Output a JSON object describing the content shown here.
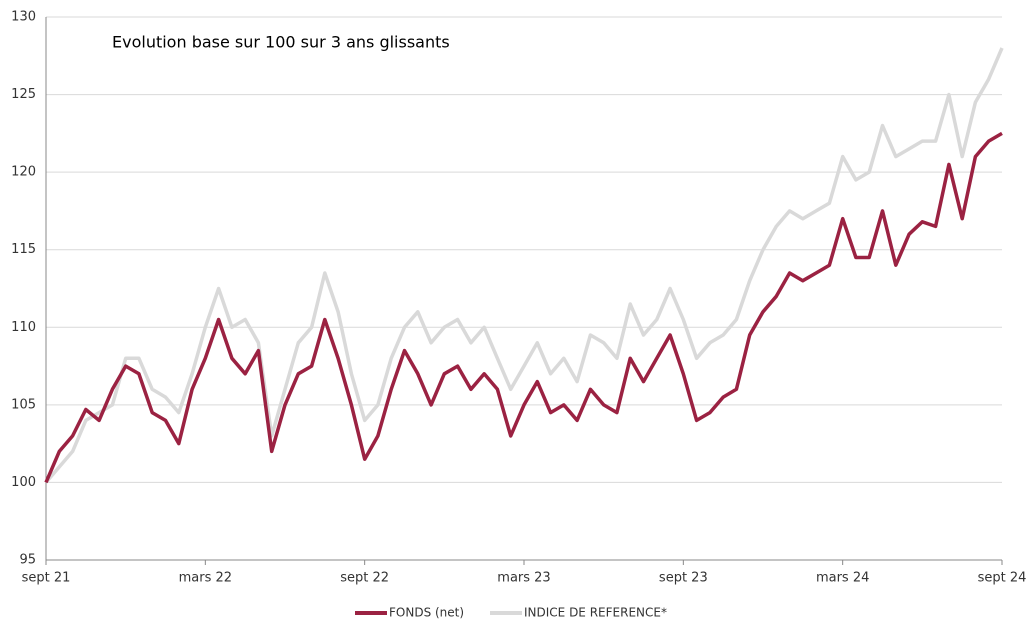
{
  "chart_data": {
    "type": "line",
    "title": "Evolution base sur 100 sur 3 ans glissants",
    "categories": [
      "sept 21",
      null,
      null,
      null,
      null,
      null,
      null,
      null,
      null,
      null,
      null,
      null,
      "mars 22",
      null,
      null,
      null,
      null,
      null,
      null,
      null,
      null,
      null,
      null,
      null,
      "sept 22",
      null,
      null,
      null,
      null,
      null,
      null,
      null,
      null,
      null,
      null,
      null,
      "mars 23",
      null,
      null,
      null,
      null,
      null,
      null,
      null,
      null,
      null,
      null,
      null,
      "sept 23",
      null,
      null,
      null,
      null,
      null,
      null,
      null,
      null,
      null,
      null,
      null,
      "mars 24",
      null,
      null,
      null,
      null,
      null,
      null,
      null,
      null,
      null,
      null,
      null,
      "sept 24"
    ],
    "series": [
      {
        "name": "FONDS (net)",
        "color": "#9b2242",
        "values": [
          100,
          102,
          103,
          104.7,
          104,
          106,
          107.5,
          107,
          104.5,
          104,
          102.5,
          106,
          108,
          110.5,
          108,
          107,
          108.5,
          102,
          105,
          107,
          107.5,
          110.5,
          108,
          105,
          101.5,
          103,
          106,
          108.5,
          107,
          105,
          107,
          107.5,
          106,
          107,
          106,
          103,
          105,
          106.5,
          104.5,
          105,
          104,
          106,
          105,
          104.5,
          108,
          106.5,
          108,
          109.5,
          107,
          104,
          104.5,
          105.5,
          106,
          109.5,
          111,
          112,
          113.5,
          113,
          113.5,
          114,
          117,
          114.5,
          114.5,
          117.5,
          114,
          116,
          116.8,
          116.5,
          120.5,
          117,
          121,
          122,
          122.5
        ]
      },
      {
        "name": "INDICE DE REFERENCE*",
        "color": "#d9d9d9",
        "values": [
          100,
          101,
          102,
          104,
          104.5,
          105,
          108,
          108,
          106,
          105.5,
          104.5,
          107,
          110,
          112.5,
          110,
          110.5,
          109,
          103,
          106,
          109,
          110,
          113.5,
          111,
          107,
          104,
          105,
          108,
          110,
          111,
          109,
          110,
          110.5,
          109,
          110,
          108,
          106,
          107.5,
          109,
          107,
          108,
          106.5,
          109.5,
          109,
          108,
          111.5,
          109.5,
          110.5,
          112.5,
          110.5,
          108,
          109,
          109.5,
          110.5,
          113,
          115,
          116.5,
          117.5,
          117,
          117.5,
          118,
          121,
          119.5,
          120,
          123,
          121,
          121.5,
          122,
          122,
          125,
          121,
          124.5,
          126,
          128
        ]
      }
    ],
    "ylim": [
      95,
      130
    ],
    "yticks": [
      95,
      100,
      105,
      110,
      115,
      120,
      125,
      130
    ],
    "grid": true,
    "legend": "bottom"
  }
}
